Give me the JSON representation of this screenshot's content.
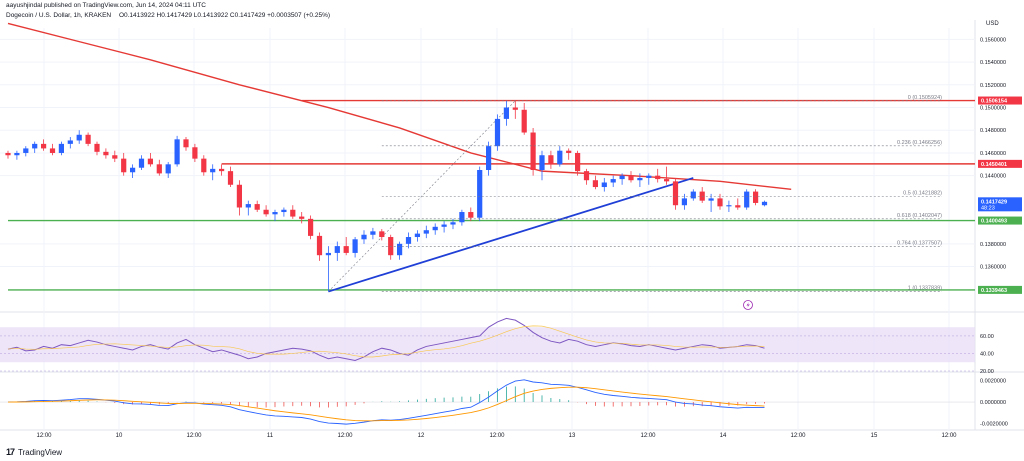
{
  "header": {
    "author_line": "aayushjindal published on TradingView.com, Jun 14, 2024 04:11 UTC",
    "symbol_line": "Dogecoin / U.S. Dollar, 1h, KRAKEN",
    "ohlc_line": "O0.1413922  H0.1417429  L0.1413922  C0.1417429  +0.0003507 (+0.25%)"
  },
  "footer": {
    "brand_label": "TradingView",
    "logo_text": "17"
  },
  "currency_label": "USD",
  "colors": {
    "up": "#2962ff",
    "down": "#f23645",
    "ma": "#e53935",
    "trend": "#1f3fd6",
    "support": "#4caf50",
    "resistance": "#e53935",
    "rsi": "#7e57c2",
    "rsi_band": "#e7dbf5",
    "macd": "#2962ff",
    "signal": "#ff9800"
  },
  "chart_data": {
    "type": "candlestick",
    "x_ticks": [
      "12:00",
      "10",
      "12:00",
      "11",
      "12:00",
      "12",
      "12:00",
      "13",
      "12:00",
      "14",
      "12:00",
      "15",
      "12:00"
    ],
    "price_ticks": [
      0.136,
      0.138,
      0.144,
      0.146,
      0.148,
      0.15,
      0.152,
      0.154,
      0.156
    ],
    "price_range": [
      0.132,
      0.157
    ],
    "candles": [
      [
        0.146,
        0.1462,
        0.1455,
        0.1458
      ],
      [
        0.1458,
        0.1462,
        0.1454,
        0.146
      ],
      [
        0.146,
        0.1466,
        0.1457,
        0.1464
      ],
      [
        0.1464,
        0.147,
        0.146,
        0.1468
      ],
      [
        0.1468,
        0.1472,
        0.1462,
        0.1464
      ],
      [
        0.1464,
        0.1468,
        0.1458,
        0.146
      ],
      [
        0.146,
        0.147,
        0.1458,
        0.1468
      ],
      [
        0.1468,
        0.1474,
        0.1464,
        0.1471
      ],
      [
        0.1471,
        0.148,
        0.1468,
        0.1476
      ],
      [
        0.1476,
        0.1478,
        0.1466,
        0.1468
      ],
      [
        0.1468,
        0.147,
        0.1458,
        0.1461
      ],
      [
        0.1461,
        0.1464,
        0.1455,
        0.1458
      ],
      [
        0.1458,
        0.1462,
        0.1452,
        0.1455
      ],
      [
        0.1455,
        0.146,
        0.144,
        0.1443
      ],
      [
        0.1443,
        0.145,
        0.1438,
        0.1447
      ],
      [
        0.1447,
        0.1458,
        0.1445,
        0.1455
      ],
      [
        0.1455,
        0.146,
        0.1448,
        0.145
      ],
      [
        0.145,
        0.1454,
        0.144,
        0.1442
      ],
      [
        0.1442,
        0.1452,
        0.1438,
        0.145
      ],
      [
        0.145,
        0.1475,
        0.1448,
        0.1472
      ],
      [
        0.1472,
        0.1474,
        0.1462,
        0.1465
      ],
      [
        0.1465,
        0.1468,
        0.1452,
        0.1455
      ],
      [
        0.1455,
        0.1458,
        0.144,
        0.1443
      ],
      [
        0.1443,
        0.145,
        0.1436,
        0.1446
      ],
      [
        0.1446,
        0.145,
        0.144,
        0.1444
      ],
      [
        0.1444,
        0.1448,
        0.143,
        0.1432
      ],
      [
        0.1432,
        0.1436,
        0.1405,
        0.1412
      ],
      [
        0.1412,
        0.1418,
        0.1405,
        0.1415
      ],
      [
        0.1415,
        0.1418,
        0.1408,
        0.141
      ],
      [
        0.141,
        0.1414,
        0.1404,
        0.1406
      ],
      [
        0.1406,
        0.141,
        0.14,
        0.1408
      ],
      [
        0.1408,
        0.1412,
        0.1404,
        0.141
      ],
      [
        0.141,
        0.1414,
        0.1402,
        0.1404
      ],
      [
        0.1404,
        0.1408,
        0.1398,
        0.1402
      ],
      [
        0.1402,
        0.1405,
        0.1384,
        0.1387
      ],
      [
        0.1387,
        0.139,
        0.1365,
        0.137
      ],
      [
        0.137,
        0.1378,
        0.1338,
        0.1372
      ],
      [
        0.1372,
        0.1382,
        0.1365,
        0.1378
      ],
      [
        0.1378,
        0.1386,
        0.137,
        0.1372
      ],
      [
        0.1372,
        0.1386,
        0.1368,
        0.1384
      ],
      [
        0.1384,
        0.1392,
        0.138,
        0.1388
      ],
      [
        0.1388,
        0.1394,
        0.1384,
        0.1391
      ],
      [
        0.1391,
        0.1393,
        0.1383,
        0.1386
      ],
      [
        0.1386,
        0.1388,
        0.1366,
        0.137
      ],
      [
        0.137,
        0.1382,
        0.1366,
        0.138
      ],
      [
        0.138,
        0.139,
        0.1376,
        0.1386
      ],
      [
        0.1386,
        0.1392,
        0.1382,
        0.1389
      ],
      [
        0.1389,
        0.1396,
        0.1385,
        0.1392
      ],
      [
        0.1392,
        0.1398,
        0.1388,
        0.1395
      ],
      [
        0.1395,
        0.14,
        0.139,
        0.1397
      ],
      [
        0.1397,
        0.1402,
        0.1393,
        0.1399
      ],
      [
        0.1399,
        0.141,
        0.1396,
        0.1408
      ],
      [
        0.1408,
        0.1412,
        0.14,
        0.1403
      ],
      [
        0.1403,
        0.1448,
        0.14,
        0.1445
      ],
      [
        0.1445,
        0.147,
        0.144,
        0.1466
      ],
      [
        0.1466,
        0.1494,
        0.1462,
        0.149
      ],
      [
        0.149,
        0.1506,
        0.1484,
        0.15
      ],
      [
        0.15,
        0.1506,
        0.149,
        0.1498
      ],
      [
        0.1498,
        0.1504,
        0.1476,
        0.1478
      ],
      [
        0.1478,
        0.1482,
        0.144,
        0.1445
      ],
      [
        0.1445,
        0.1462,
        0.1436,
        0.1458
      ],
      [
        0.1458,
        0.1462,
        0.1446,
        0.145
      ],
      [
        0.145,
        0.1466,
        0.1448,
        0.1462
      ],
      [
        0.1462,
        0.1464,
        0.1454,
        0.146
      ],
      [
        0.146,
        0.1462,
        0.144,
        0.1444
      ],
      [
        0.1444,
        0.1446,
        0.1432,
        0.1436
      ],
      [
        0.1436,
        0.144,
        0.1428,
        0.143
      ],
      [
        0.143,
        0.1438,
        0.1426,
        0.1434
      ],
      [
        0.1434,
        0.144,
        0.143,
        0.1437
      ],
      [
        0.1437,
        0.1442,
        0.1432,
        0.144
      ],
      [
        0.144,
        0.1444,
        0.1434,
        0.1436
      ],
      [
        0.1436,
        0.1442,
        0.143,
        0.1438
      ],
      [
        0.1438,
        0.1442,
        0.1432,
        0.144
      ],
      [
        0.144,
        0.1446,
        0.1434,
        0.1437
      ],
      [
        0.1437,
        0.1448,
        0.1432,
        0.1435
      ],
      [
        0.1435,
        0.1438,
        0.141,
        0.1414
      ],
      [
        0.1414,
        0.1424,
        0.141,
        0.142
      ],
      [
        0.142,
        0.1428,
        0.1418,
        0.1426
      ],
      [
        0.1426,
        0.143,
        0.1416,
        0.1418
      ],
      [
        0.1418,
        0.1424,
        0.1408,
        0.142
      ],
      [
        0.142,
        0.1424,
        0.141,
        0.1413
      ],
      [
        0.1413,
        0.1418,
        0.1408,
        0.1414
      ],
      [
        0.1414,
        0.142,
        0.141,
        0.1412
      ],
      [
        0.1412,
        0.1428,
        0.141,
        0.1426
      ],
      [
        0.1426,
        0.1428,
        0.1414,
        0.1416
      ],
      [
        0.1414,
        0.1418,
        0.1413,
        0.1417
      ]
    ],
    "moving_average": [
      [
        0,
        0.1574
      ],
      [
        8,
        0.1558
      ],
      [
        16,
        0.1542
      ],
      [
        26,
        0.152
      ],
      [
        36,
        0.15
      ],
      [
        44,
        0.1482
      ],
      [
        52,
        0.146
      ],
      [
        60,
        0.1444
      ],
      [
        70,
        0.144
      ],
      [
        80,
        0.1435
      ],
      [
        88,
        0.1428
      ]
    ],
    "trend_line": {
      "from": [
        36,
        0.1338
      ],
      "to": [
        77,
        0.1438
      ]
    },
    "fib_dashed_line": {
      "from": [
        36,
        0.1338
      ],
      "to": [
        57,
        0.1506
      ]
    },
    "horizontal_levels": [
      {
        "price": 0.1506154,
        "style": "resistance",
        "from": 33
      },
      {
        "price": 0.1450401,
        "style": "resistance",
        "from": 24
      },
      {
        "price": 0.1400493,
        "style": "support",
        "from": 0
      },
      {
        "price": 0.1339463,
        "style": "support",
        "from": 0
      }
    ],
    "fib_levels": [
      {
        "label": "0 (0.1505924)",
        "price": 0.1505924
      },
      {
        "label": "0.236 (0.1466256)",
        "price": 0.1466256
      },
      {
        "label": "0.5 (0.1421882)",
        "price": 0.1421882
      },
      {
        "label": "0.618 (0.1402047)",
        "price": 0.1402047
      },
      {
        "label": "0.764 (0.1377507)",
        "price": 0.1377507
      },
      {
        "label": "1 (0.1337839)",
        "price": 0.1337839
      }
    ],
    "price_badges": [
      {
        "text": "0.1506154",
        "price": 0.1506154,
        "color": "#f23645"
      },
      {
        "text": "0.1450401",
        "price": 0.1450401,
        "color": "#f23645"
      },
      {
        "text": "0.1417429",
        "sub": "48:23",
        "price": 0.1417429,
        "color": "#2962ff"
      },
      {
        "text": "0.1400493",
        "price": 0.1400493,
        "color": "#4caf50"
      },
      {
        "text": "0.1339463",
        "price": 0.1339463,
        "color": "#4caf50"
      }
    ],
    "rsi": {
      "ticks": [
        "60.00",
        "40.00",
        "20.00"
      ],
      "tick_values": [
        60,
        40,
        20
      ],
      "range": [
        20,
        85
      ],
      "band": [
        30,
        70
      ],
      "values": [
        45,
        47,
        43,
        44,
        48,
        46,
        50,
        49,
        52,
        55,
        53,
        50,
        48,
        46,
        44,
        48,
        50,
        47,
        45,
        52,
        56,
        50,
        46,
        42,
        44,
        41,
        38,
        34,
        36,
        40,
        42,
        44,
        46,
        45,
        43,
        38,
        34,
        36,
        34,
        32,
        36,
        42,
        46,
        44,
        40,
        38,
        44,
        48,
        50,
        52,
        54,
        56,
        58,
        60,
        70,
        76,
        80,
        78,
        72,
        64,
        58,
        54,
        52,
        56,
        54,
        50,
        48,
        50,
        52,
        51,
        49,
        48,
        50,
        48,
        46,
        44,
        46,
        48,
        50,
        49,
        46,
        47,
        48,
        50,
        49,
        46
      ]
    },
    "macd": {
      "ticks": [
        "0.0020000",
        "0.0000000",
        "-0.0020000"
      ],
      "tick_values": [
        0.002,
        0.0,
        -0.002
      ],
      "range": [
        -0.0025,
        0.0026
      ]
    }
  }
}
